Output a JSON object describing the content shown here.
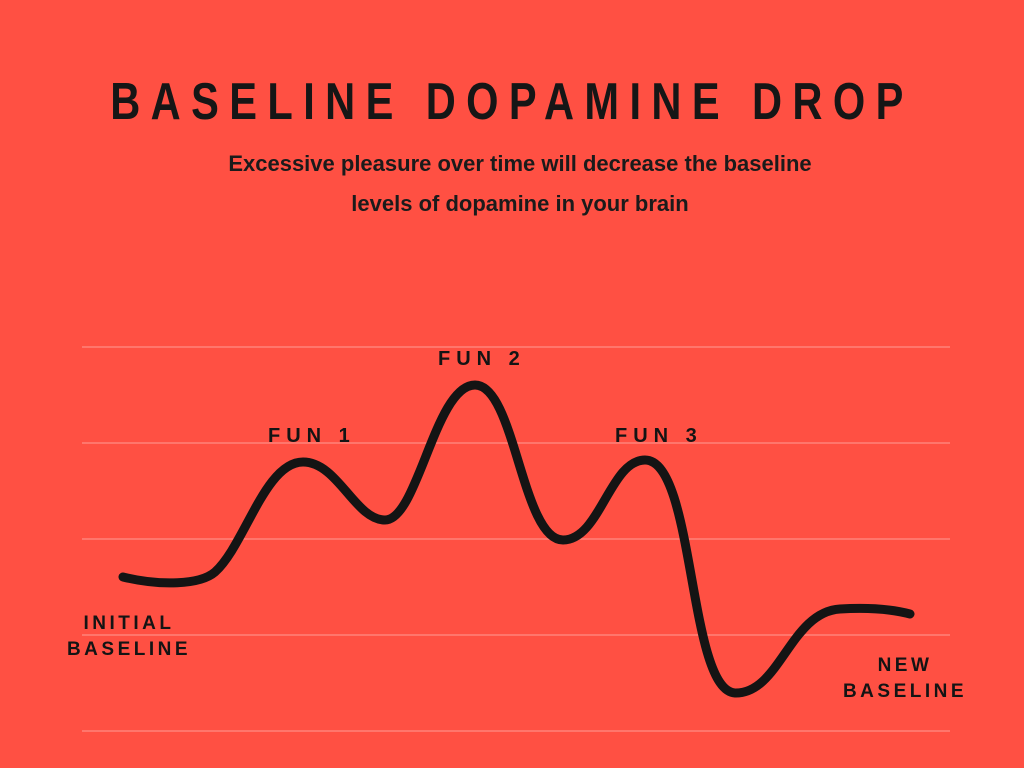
{
  "title": "BASELINE DOPAMINE DROP",
  "subtitle": {
    "line1": "Excessive pleasure over time will decrease the baseline",
    "line2": "levels of dopamine in your brain"
  },
  "labels": {
    "fun1": "FUN 1",
    "fun2": "FUN 2",
    "fun3": "FUN 3",
    "initial_baseline": [
      "INITIAL",
      "BASELINE"
    ],
    "new_baseline": [
      "NEW",
      "BASELINE"
    ]
  },
  "colors": {
    "background": "#FF5043",
    "line": "#141414",
    "gridline": "#FF8D84"
  }
}
